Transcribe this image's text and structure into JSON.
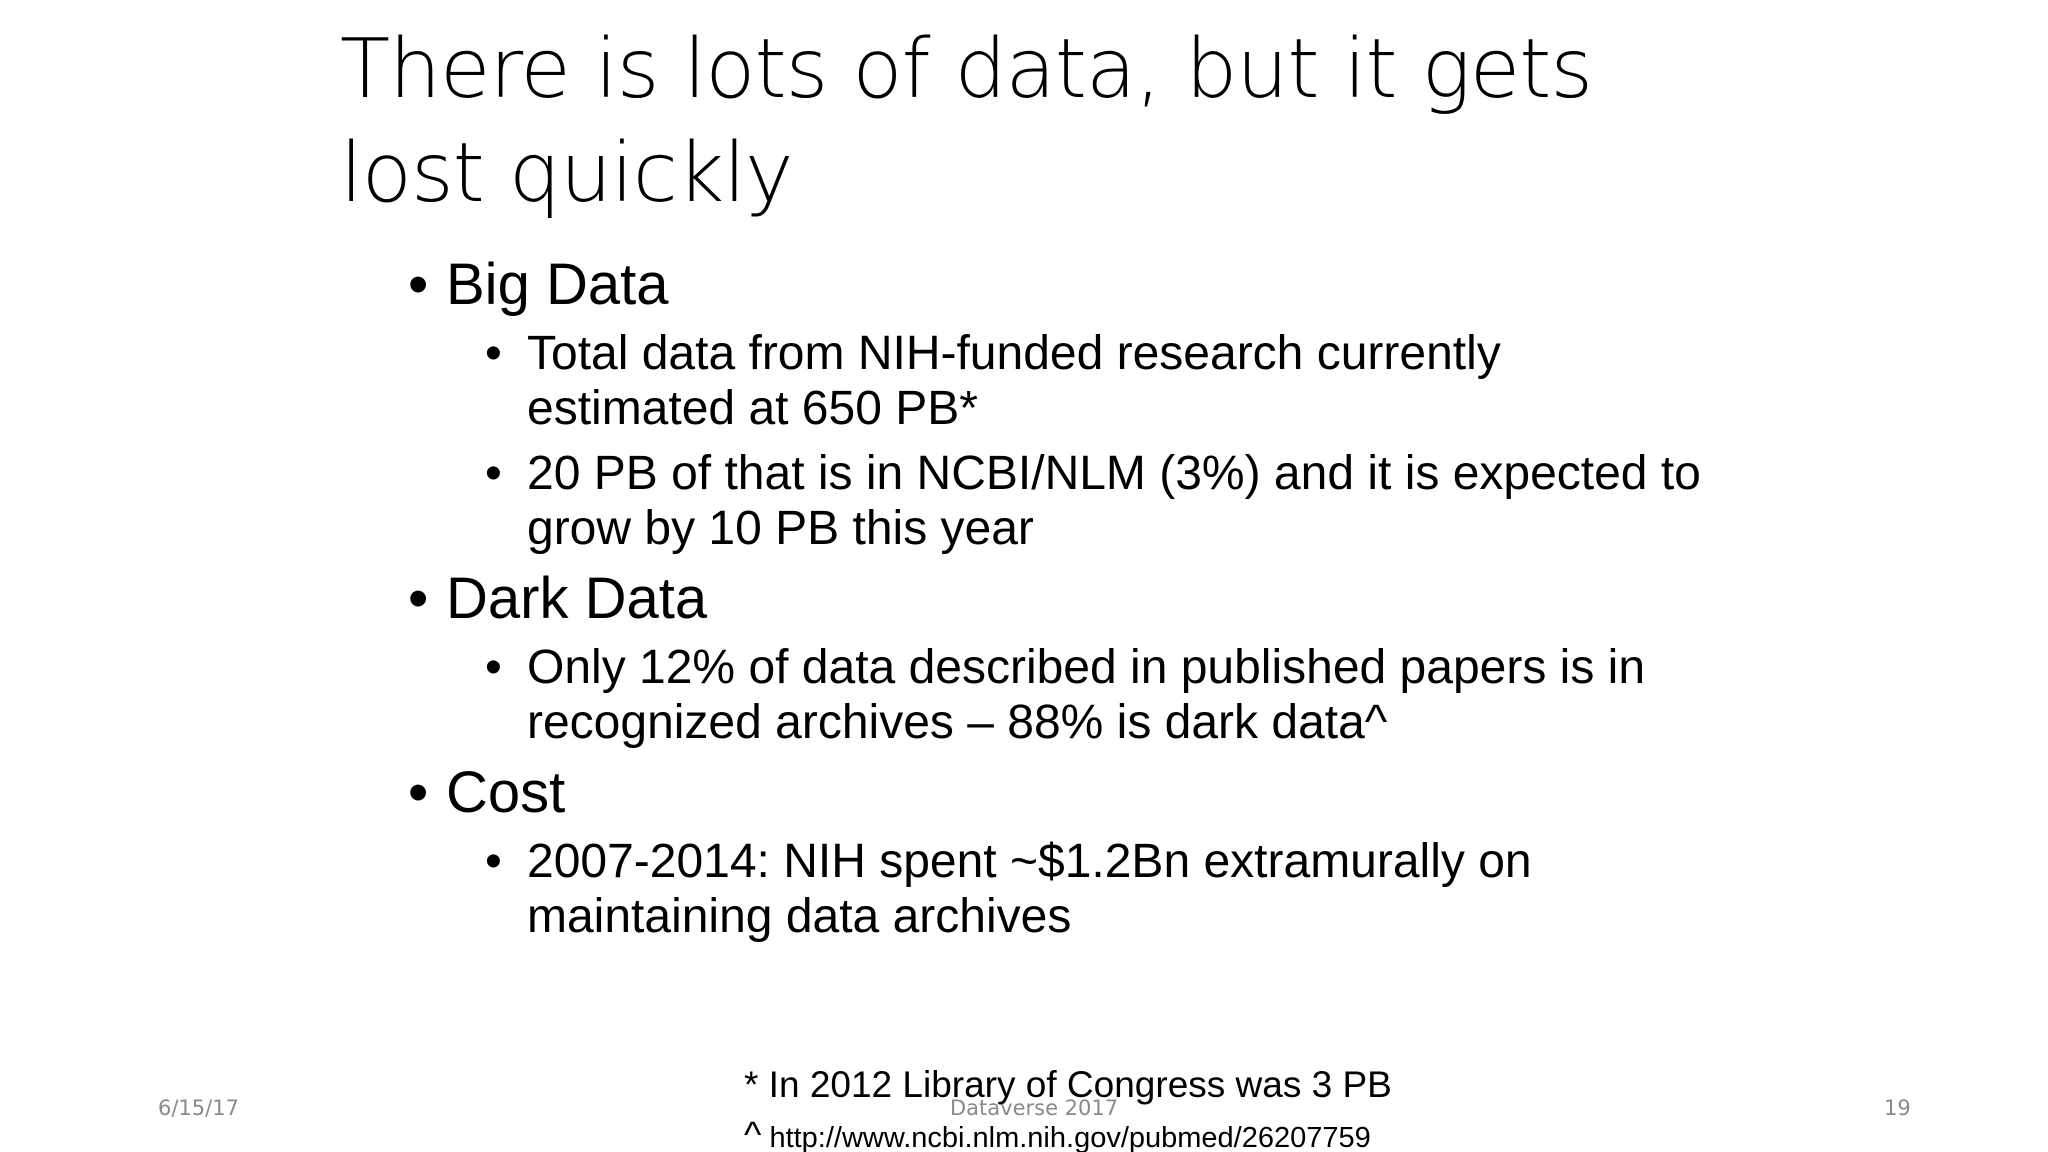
{
  "slide": {
    "title": "There is lots of data, but it gets lost quickly",
    "bullet_glyph": "•",
    "sections": [
      {
        "heading": "Big Data",
        "items": [
          "Total data from NIH-funded research currently estimated at 650 PB*",
          "20 PB of that is in NCBI/NLM (3%) and it is expected to grow by 10 PB this year"
        ]
      },
      {
        "heading": "Dark Data",
        "items": [
          "Only 12% of data described in published papers is in recognized archives – 88% is dark data^"
        ]
      },
      {
        "heading": "Cost",
        "items": [
          "2007-2014: NIH spent ~$1.2Bn extramurally on maintaining data archives"
        ]
      }
    ],
    "footnotes": {
      "asterisk_note": "* In 2012 Library of Congress was 3 PB",
      "caret_symbol": "^",
      "caret_note": "http://www.ncbi.nlm.nih.gov/pubmed/26207759"
    },
    "footer": {
      "date": "6/15/17",
      "center": "Dataverse 2017",
      "page_number": "19"
    }
  }
}
